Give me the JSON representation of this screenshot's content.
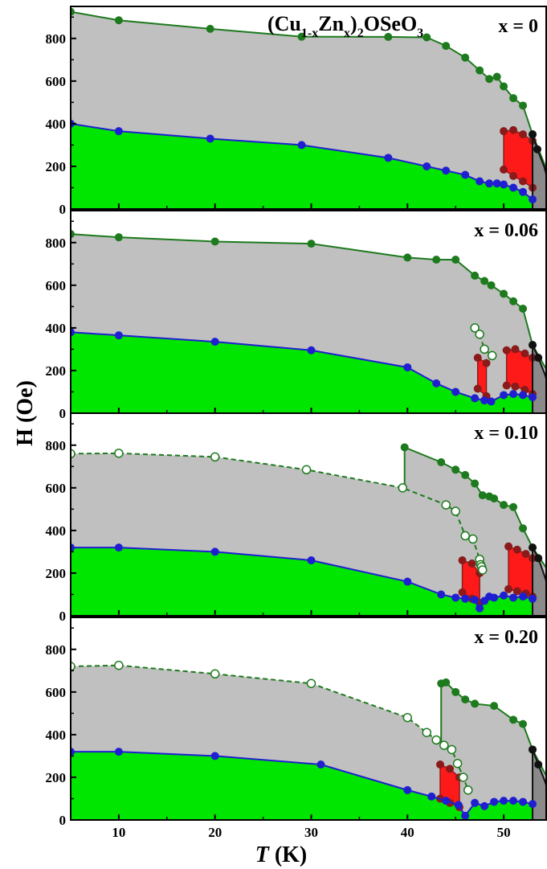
{
  "chart_data": {
    "type": "scatter",
    "title": "(Cu1-xZnx)2OSeO3",
    "title_parts": {
      "a": "(Cu",
      "b": "1-x",
      "c": "Zn",
      "d": "x",
      "e": ")",
      "f": "2",
      "g": "OSeO",
      "h": "3"
    },
    "xlabel": "T (K)",
    "xlabel_parts": {
      "italic": "T",
      "rest": " (K)"
    },
    "ylabel": "H (Oe)",
    "xlim": [
      5,
      54.5
    ],
    "ylim": [
      0,
      950
    ],
    "xticks": [
      "10",
      "20",
      "30",
      "40",
      "50"
    ],
    "yticks": [
      "0",
      "200",
      "400",
      "600",
      "800"
    ],
    "colors": {
      "upper_fill": "#c0c0c0",
      "lower_fill": "#00e600",
      "pocket_fill": "#ff1a1a",
      "pocket_edge": "#8b1a1a",
      "blue": "#1f1fd1",
      "green": "#1d7a1d",
      "black": "#111111",
      "dark_fill": "#8a8a8a"
    },
    "panels": [
      {
        "label": "x = 0",
        "upper_solid": [
          [
            5,
            925
          ],
          [
            10,
            885
          ],
          [
            19.5,
            845
          ],
          [
            29,
            808
          ],
          [
            38,
            807
          ],
          [
            42,
            805
          ],
          [
            44,
            765
          ],
          [
            46,
            710
          ],
          [
            47.5,
            650
          ],
          [
            48.5,
            610
          ],
          [
            49.3,
            620
          ],
          [
            50,
            575
          ],
          [
            51,
            520
          ],
          [
            52,
            485
          ],
          [
            53,
            350
          ],
          [
            54.5,
            180
          ]
        ],
        "lower_blue": [
          [
            5,
            400
          ],
          [
            10,
            365
          ],
          [
            19.5,
            330
          ],
          [
            29,
            300
          ],
          [
            38,
            240
          ],
          [
            42,
            200
          ],
          [
            44,
            180
          ],
          [
            46,
            160
          ],
          [
            47.5,
            130
          ],
          [
            48.5,
            120
          ],
          [
            49.3,
            120
          ],
          [
            50,
            115
          ],
          [
            51,
            100
          ],
          [
            52,
            80
          ],
          [
            53,
            45
          ]
        ],
        "red_pockets": [
          [
            [
              50,
              365
            ],
            [
              51,
              370
            ],
            [
              52,
              350
            ],
            [
              53,
              320
            ],
            [
              53,
              100
            ],
            [
              52,
              130
            ],
            [
              51,
              155
            ],
            [
              50,
              185
            ]
          ]
        ],
        "open_circles": [],
        "upper_dashed": [],
        "black_curve": [
          [
            53,
            350
          ],
          [
            53.5,
            280
          ],
          [
            54.2,
            200
          ],
          [
            54.5,
            150
          ]
        ]
      },
      {
        "label": "x = 0.06",
        "upper_solid": [
          [
            5,
            840
          ],
          [
            10,
            825
          ],
          [
            20,
            805
          ],
          [
            30,
            795
          ],
          [
            40,
            730
          ],
          [
            43,
            720
          ],
          [
            45,
            720
          ],
          [
            47,
            645
          ],
          [
            48,
            620
          ],
          [
            48.7,
            600
          ],
          [
            50,
            560
          ],
          [
            51,
            525
          ],
          [
            52,
            490
          ],
          [
            53,
            320
          ],
          [
            54.5,
            200
          ]
        ],
        "lower_blue": [
          [
            5,
            380
          ],
          [
            10,
            365
          ],
          [
            20,
            335
          ],
          [
            30,
            295
          ],
          [
            40,
            215
          ],
          [
            43,
            140
          ],
          [
            45,
            100
          ],
          [
            47,
            70
          ],
          [
            48,
            60
          ],
          [
            48.7,
            55
          ],
          [
            50,
            85
          ],
          [
            51,
            90
          ],
          [
            52,
            85
          ],
          [
            53,
            75
          ]
        ],
        "red_pockets": [
          [
            [
              47.3,
              260
            ],
            [
              48.2,
              235
            ],
            [
              48.2,
              80
            ],
            [
              47.3,
              115
            ]
          ],
          [
            [
              50.3,
              295
            ],
            [
              51.2,
              300
            ],
            [
              52.2,
              280
            ],
            [
              53,
              260
            ],
            [
              53,
              90
            ],
            [
              52.2,
              110
            ],
            [
              51.2,
              125
            ],
            [
              50.3,
              130
            ]
          ]
        ],
        "open_circles": [
          [
            47,
            400
          ],
          [
            47.5,
            370
          ],
          [
            48,
            300
          ],
          [
            48.8,
            270
          ]
        ],
        "upper_dashed": [
          [
            47,
            400
          ],
          [
            47.5,
            370
          ],
          [
            48,
            300
          ],
          [
            48.8,
            270
          ]
        ],
        "black_curve": [
          [
            53,
            320
          ],
          [
            53.6,
            260
          ],
          [
            54.3,
            180
          ],
          [
            54.5,
            150
          ]
        ]
      },
      {
        "label": "x = 0.10",
        "upper_solid": [
          [
            39.7,
            790
          ],
          [
            43.5,
            720
          ],
          [
            45,
            685
          ],
          [
            46,
            660
          ],
          [
            47,
            620
          ],
          [
            47.8,
            565
          ],
          [
            48.5,
            560
          ],
          [
            49,
            550
          ],
          [
            50,
            520
          ],
          [
            51,
            510
          ],
          [
            52,
            410
          ],
          [
            53,
            320
          ],
          [
            54.5,
            220
          ]
        ],
        "lower_blue": [
          [
            5,
            320
          ],
          [
            10,
            320
          ],
          [
            20,
            300
          ],
          [
            30,
            260
          ],
          [
            40,
            160
          ],
          [
            43.5,
            100
          ],
          [
            45,
            85
          ],
          [
            46,
            80
          ],
          [
            47,
            75
          ],
          [
            47.5,
            35
          ],
          [
            48,
            70
          ],
          [
            48.5,
            90
          ],
          [
            49,
            85
          ],
          [
            50,
            95
          ],
          [
            51,
            85
          ],
          [
            52,
            90
          ],
          [
            53,
            80
          ]
        ],
        "red_pockets": [
          [
            [
              45.7,
              260
            ],
            [
              46.7,
              245
            ],
            [
              47.5,
              200
            ],
            [
              47.5,
              60
            ],
            [
              46.7,
              80
            ],
            [
              45.7,
              110
            ]
          ],
          [
            [
              50.5,
              325
            ],
            [
              51.4,
              310
            ],
            [
              52.3,
              290
            ],
            [
              53,
              270
            ],
            [
              53,
              90
            ],
            [
              52.3,
              105
            ],
            [
              51.4,
              115
            ],
            [
              50.5,
              125
            ]
          ]
        ],
        "open_circles": [
          [
            5,
            760
          ],
          [
            10,
            762
          ],
          [
            20,
            745
          ],
          [
            29.5,
            685
          ],
          [
            39.5,
            600
          ],
          [
            44,
            520
          ],
          [
            45,
            490
          ],
          [
            46,
            375
          ],
          [
            46.8,
            360
          ],
          [
            47.5,
            265
          ],
          [
            47.6,
            240
          ],
          [
            47.7,
            230
          ],
          [
            47.8,
            215
          ]
        ],
        "upper_dashed": [
          [
            5,
            760
          ],
          [
            10,
            762
          ],
          [
            20,
            745
          ],
          [
            29.5,
            685
          ],
          [
            39.5,
            600
          ],
          [
            44,
            520
          ],
          [
            45,
            490
          ],
          [
            46,
            375
          ],
          [
            46.8,
            360
          ],
          [
            47.5,
            265
          ]
        ],
        "black_curve": [
          [
            53,
            320
          ],
          [
            53.6,
            270
          ],
          [
            54.3,
            180
          ],
          [
            54.5,
            150
          ]
        ]
      },
      {
        "label": "x = 0.20",
        "upper_solid": [
          [
            43.5,
            640
          ],
          [
            44,
            645
          ],
          [
            45,
            600
          ],
          [
            46,
            565
          ],
          [
            47,
            545
          ],
          [
            49,
            535
          ],
          [
            51,
            470
          ],
          [
            52,
            450
          ],
          [
            53,
            330
          ],
          [
            54.5,
            200
          ]
        ],
        "lower_blue": [
          [
            5,
            320
          ],
          [
            10,
            320
          ],
          [
            20,
            300
          ],
          [
            31,
            260
          ],
          [
            40,
            140
          ],
          [
            42.5,
            110
          ],
          [
            44,
            90
          ],
          [
            45.3,
            70
          ],
          [
            46,
            20
          ],
          [
            47,
            80
          ],
          [
            48,
            65
          ],
          [
            49,
            85
          ],
          [
            50,
            90
          ],
          [
            51,
            90
          ],
          [
            52,
            85
          ],
          [
            53,
            75
          ]
        ],
        "red_pockets": [
          [
            [
              43.4,
              260
            ],
            [
              44.4,
              240
            ],
            [
              45.4,
              200
            ],
            [
              45.4,
              60
            ],
            [
              44.4,
              80
            ],
            [
              43.4,
              100
            ]
          ]
        ],
        "open_circles": [
          [
            5,
            720
          ],
          [
            10,
            725
          ],
          [
            20,
            685
          ],
          [
            30,
            640
          ],
          [
            40,
            480
          ],
          [
            42,
            410
          ],
          [
            43,
            375
          ],
          [
            43.8,
            350
          ],
          [
            44.6,
            330
          ],
          [
            45.2,
            265
          ],
          [
            45.8,
            200
          ],
          [
            46.3,
            140
          ]
        ],
        "upper_dashed": [
          [
            5,
            720
          ],
          [
            10,
            725
          ],
          [
            20,
            685
          ],
          [
            30,
            640
          ],
          [
            40,
            480
          ],
          [
            42,
            410
          ],
          [
            43,
            375
          ],
          [
            43.8,
            350
          ],
          [
            44.6,
            330
          ],
          [
            45.2,
            265
          ],
          [
            45.8,
            200
          ],
          [
            46.3,
            140
          ]
        ],
        "black_curve": [
          [
            53,
            330
          ],
          [
            53.6,
            260
          ],
          [
            54.3,
            180
          ],
          [
            54.5,
            150
          ]
        ]
      }
    ]
  }
}
